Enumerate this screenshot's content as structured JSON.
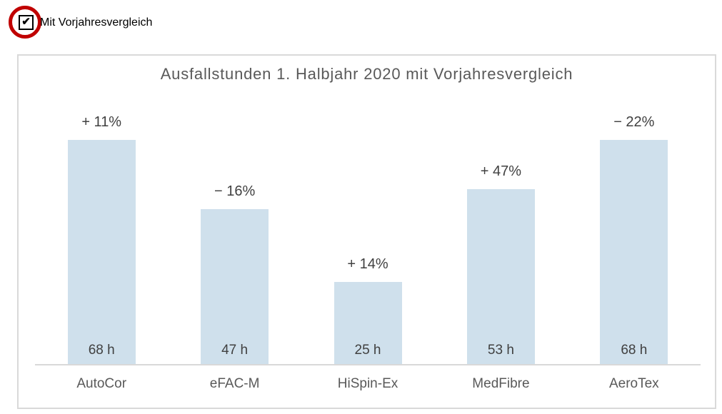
{
  "controls": {
    "comparison_checkbox": {
      "label": "Mit Vorjahresvergleich",
      "checked": true,
      "check_glyph": "✔"
    }
  },
  "annotation": {
    "shape": "circle",
    "color": "#c00000"
  },
  "colors": {
    "bar_fill": "#cfe0ec",
    "title_text": "#595959",
    "data_label_text": "#404040",
    "category_text": "#595959",
    "axis_line": "#d9d9d9",
    "chart_border": "#d9d9d9",
    "annotation_circle": "#c00000"
  },
  "chart_data": {
    "type": "bar",
    "title": "Ausfallstunden 1. Halbjahr 2020 mit Vorjahresvergleich",
    "categories": [
      "AutoCor",
      "eFAC-M",
      "HiSpin-Ex",
      "MedFibre",
      "AeroTex"
    ],
    "values": [
      68,
      47,
      25,
      53,
      68
    ],
    "value_labels": [
      "68 h",
      "47 h",
      "25 h",
      "53 h",
      "68 h"
    ],
    "change_labels": [
      "+ 11%",
      "− 16%",
      "+ 14%",
      "+ 47%",
      "− 22%"
    ],
    "unit": "h",
    "xlabel": "",
    "ylabel": "",
    "ylim": [
      0,
      68
    ],
    "grid": false,
    "legend": false,
    "value_label_position": "inside-base",
    "change_label_position": "above-bar"
  }
}
